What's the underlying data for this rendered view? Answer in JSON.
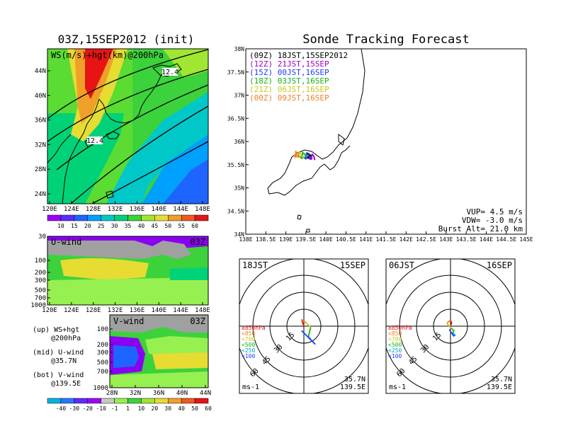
{
  "chart_data": [
    {
      "type": "heatmap",
      "panel": "map-ws-200hPa",
      "title": "03Z,15SEP2012 (init)",
      "label": "WS(m/s)+hgt(km)@200hPa",
      "x_ticks": [
        "120E",
        "124E",
        "128E",
        "132E",
        "136E",
        "140E",
        "144E",
        "148E"
      ],
      "y_ticks": [
        "24N",
        "28N",
        "32N",
        "36N",
        "40N",
        "44N"
      ],
      "contour_labels": [
        "12.4",
        "12.4"
      ],
      "colorbar": [
        "10",
        "15",
        "20",
        "25",
        "30",
        "35",
        "40",
        "45",
        "50",
        "55",
        "60"
      ],
      "colorbar_colors": [
        "#9a00ff",
        "#5a2cff",
        "#1e64ff",
        "#00a0ff",
        "#00c8c8",
        "#00d278",
        "#3cd23c",
        "#a0e632",
        "#e6dc32",
        "#f0a028",
        "#f05a1e",
        "#e61414"
      ]
    },
    {
      "type": "heatmap",
      "panel": "u-wind-section",
      "label": "U-wind",
      "time": "03Z",
      "y_ticks": [
        "30",
        "100",
        "200",
        "300",
        "500",
        "700",
        "1000"
      ],
      "x_ticks": [
        "120E",
        "124E",
        "128E",
        "132E",
        "136E",
        "140E",
        "144E",
        "148E"
      ]
    },
    {
      "type": "heatmap",
      "panel": "v-wind-section",
      "label": "V-wind",
      "time": "03Z",
      "y_ticks": [
        "100",
        "200",
        "300",
        "500",
        "700",
        "1000"
      ],
      "x_ticks": [
        "28N",
        "32N",
        "36N",
        "40N",
        "44N"
      ],
      "colorbar": [
        "-40",
        "-30",
        "-20",
        "-10",
        "-1",
        "1",
        "10",
        "20",
        "30",
        "40",
        "50",
        "60"
      ],
      "colorbar_colors": [
        "#00b4dc",
        "#2878ff",
        "#6428ff",
        "#a000ff",
        "#c8c8c8",
        "#96f050",
        "#3cd23c",
        "#a0e632",
        "#e6dc32",
        "#f0a028",
        "#f05a1e",
        "#e61414"
      ]
    },
    {
      "type": "line",
      "panel": "sonde-tracking",
      "title": "Sonde Tracking Forecast",
      "x_ticks": [
        "138E",
        "138.5E",
        "139E",
        "139.5E",
        "140E",
        "140.5E",
        "141E",
        "141.5E",
        "142E",
        "142.5E",
        "143E",
        "143.5E",
        "144E",
        "144.5E",
        "145E"
      ],
      "y_ticks": [
        "34N",
        "34.5N",
        "35N",
        "35.5N",
        "36N",
        "36.5N",
        "37N",
        "37.5N",
        "38N"
      ],
      "xlim": [
        138,
        145
      ],
      "ylim": [
        34,
        38
      ],
      "series": [
        {
          "name": "(09Z) 18JST,15SEP2012",
          "color": "#000000",
          "x": [
            139.65,
            139.62,
            139.55,
            139.58
          ],
          "y": [
            35.62,
            35.7,
            35.74,
            35.66
          ]
        },
        {
          "name": "(12Z) 21JST,15SEP",
          "color": "#a000c8",
          "x": [
            139.72,
            139.7,
            139.66,
            139.62
          ],
          "y": [
            35.6,
            35.68,
            35.72,
            35.64
          ]
        },
        {
          "name": "(15Z) 00JST,16SEP",
          "color": "#1e3cff",
          "x": [
            139.6,
            139.57,
            139.52,
            139.5
          ],
          "y": [
            35.63,
            35.71,
            35.74,
            35.65
          ]
        },
        {
          "name": "(18Z) 03JST,16SEP",
          "color": "#14b414",
          "x": [
            139.52,
            139.48,
            139.42,
            139.4
          ],
          "y": [
            35.64,
            35.72,
            35.76,
            35.66
          ]
        },
        {
          "name": "(21Z) 06JST,16SEP",
          "color": "#c8c81e",
          "x": [
            139.42,
            139.38,
            139.33,
            139.32
          ],
          "y": [
            35.65,
            35.73,
            35.77,
            35.68
          ]
        },
        {
          "name": "(00Z) 09JST,16SEP",
          "color": "#f08228",
          "x": [
            139.32,
            139.3,
            139.25,
            139.24
          ],
          "y": [
            35.66,
            35.74,
            35.78,
            35.69
          ]
        }
      ],
      "annotations": [
        "VUP= 4.5 m/s",
        "VDW= -3.0 m/s",
        "Burst Alt= 21.0 km"
      ]
    },
    {
      "type": "line",
      "panel": "hodograph-18JST",
      "left_label": "18JST",
      "right_label": "15SEP",
      "ring_labels": [
        "15",
        "30",
        "45",
        "60"
      ],
      "units": "ms-1",
      "location": [
        "35.7N",
        "139.5E"
      ],
      "layer_legend": [
        "≥850hPa",
        "<850",
        "<700",
        "<500",
        "<250",
        "<100"
      ],
      "series": [
        {
          "name": "≥850hPa",
          "color": "#e61414",
          "u": [
            0,
            -1,
            -2
          ],
          "v": [
            0,
            3,
            6
          ]
        },
        {
          "name": "<850",
          "color": "#f08228",
          "u": [
            -2,
            0,
            2
          ],
          "v": [
            6,
            4,
            3
          ]
        },
        {
          "name": "<700",
          "color": "#c8c81e",
          "u": [
            2,
            4,
            6
          ],
          "v": [
            3,
            1,
            -1
          ]
        },
        {
          "name": "<500",
          "color": "#14b414",
          "u": [
            6,
            5,
            4
          ],
          "v": [
            -1,
            -5,
            -9
          ]
        },
        {
          "name": "<250",
          "color": "#00a0c8",
          "u": [
            4,
            7,
            10
          ],
          "v": [
            -9,
            -13,
            -16
          ]
        },
        {
          "name": "<100",
          "color": "#1e3cff",
          "u": [
            10,
            4,
            -2
          ],
          "v": [
            -16,
            -10,
            -4
          ]
        }
      ]
    },
    {
      "type": "line",
      "panel": "hodograph-06JST",
      "left_label": "06JST",
      "right_label": "16SEP",
      "ring_labels": [
        "15",
        "30",
        "45",
        "60"
      ],
      "units": "ms-1",
      "location": [
        "35.7N",
        "139.5E"
      ],
      "layer_legend": [
        "≥850hPa",
        "<850",
        "<700",
        "<500",
        "<250",
        "<100"
      ],
      "series": [
        {
          "name": "≥850hPa",
          "color": "#e61414",
          "u": [
            0,
            1,
            0
          ],
          "v": [
            0,
            3,
            5
          ]
        },
        {
          "name": "<850",
          "color": "#f08228",
          "u": [
            0,
            -2,
            -3
          ],
          "v": [
            5,
            4,
            2
          ]
        },
        {
          "name": "<700",
          "color": "#c8c81e",
          "u": [
            -3,
            -1,
            1
          ],
          "v": [
            2,
            0,
            -2
          ]
        },
        {
          "name": "<500",
          "color": "#14b414",
          "u": [
            1,
            3,
            2
          ],
          "v": [
            -2,
            -4,
            -6
          ]
        },
        {
          "name": "<250",
          "color": "#00a0c8",
          "u": [
            2,
            4,
            3
          ],
          "v": [
            -6,
            -8,
            -9
          ]
        },
        {
          "name": "<100",
          "color": "#1e3cff",
          "u": [
            3,
            1,
            -1
          ],
          "v": [
            -9,
            -6,
            -3
          ]
        }
      ]
    }
  ],
  "legend_notes": [
    "(up) WS+hgt",
    "@200hPa",
    "(mid) U-wind",
    "@35.7N",
    "(bot) V-wind",
    "@139.5E"
  ]
}
